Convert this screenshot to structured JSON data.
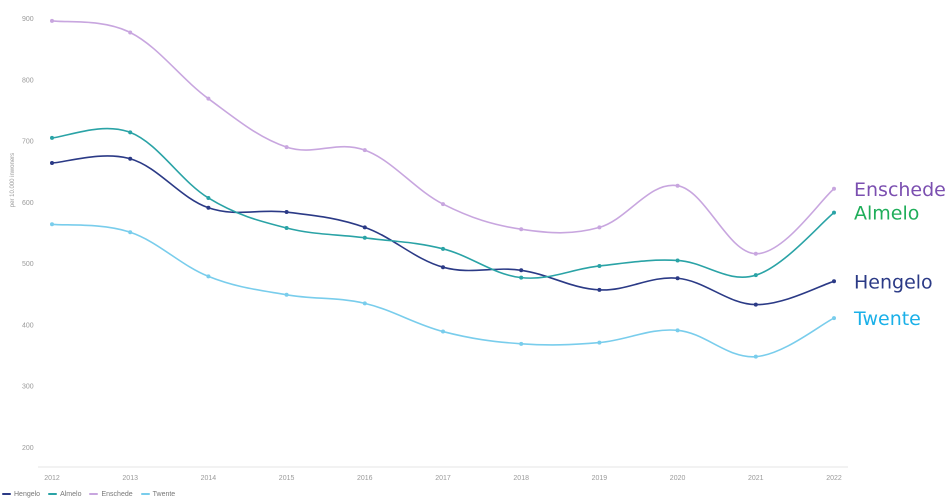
{
  "chart_data": {
    "type": "line",
    "ylabel": "per 10.000 inwoners",
    "ylim": [
      200,
      900
    ],
    "yticks": [
      900,
      800,
      700,
      600,
      500,
      400,
      300,
      200
    ],
    "categories": [
      "2012",
      "2013",
      "2014",
      "2015",
      "2016",
      "2017",
      "2018",
      "2019",
      "2020",
      "2021",
      "2022"
    ],
    "grid": false,
    "legend_position": "bottom-left",
    "series": [
      {
        "name": "Hengelo",
        "color": "#2b3a86",
        "end_label": "Hengelo",
        "values": [
          665,
          672,
          592,
          585,
          560,
          495,
          490,
          458,
          477,
          434,
          472
        ]
      },
      {
        "name": "Almelo",
        "color": "#2aa3a6",
        "end_label": "Almelo",
        "end_label_color": "#1fae5a",
        "values": [
          706,
          715,
          608,
          559,
          543,
          525,
          478,
          497,
          506,
          482,
          584
        ]
      },
      {
        "name": "Enschede",
        "color": "#c8a6df",
        "end_label": "Enschede",
        "end_label_color": "#7b4fb0",
        "values": [
          897,
          878,
          770,
          691,
          686,
          598,
          557,
          560,
          628,
          517,
          623
        ]
      },
      {
        "name": "Twente",
        "color": "#79cdec",
        "end_label": "Twente",
        "end_label_color": "#1ab0e8",
        "values": [
          565,
          552,
          480,
          450,
          436,
          390,
          370,
          372,
          392,
          349,
          412
        ]
      }
    ]
  }
}
